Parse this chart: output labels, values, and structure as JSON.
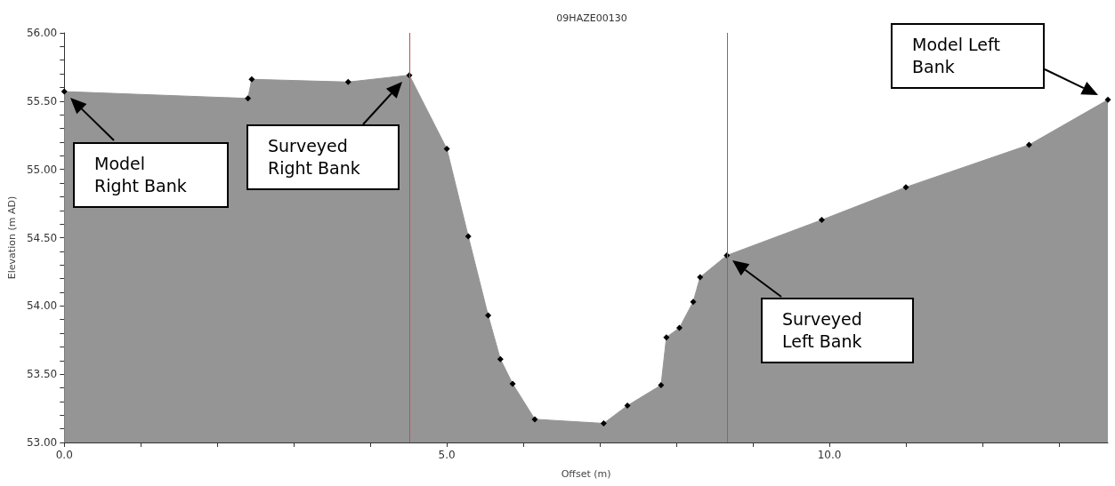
{
  "chart_data": {
    "type": "area",
    "title": "09HAZE00130",
    "xlabel": "Offset (m)",
    "ylabel": "Elevation (m AD)",
    "x": [
      0,
      2.4,
      2.45,
      3.71,
      4.51,
      5.0,
      5.28,
      5.54,
      5.7,
      5.86,
      6.15,
      7.05,
      7.36,
      7.8,
      7.87,
      8.04,
      8.22,
      8.31,
      8.66,
      9.9,
      11.0,
      12.61,
      13.64
    ],
    "series": [
      {
        "color": "#959595",
        "values": [
          55.57,
          55.52,
          55.66,
          55.64,
          55.69,
          55.15,
          54.51,
          53.93,
          53.61,
          53.43,
          53.17,
          53.14,
          53.27,
          53.42,
          53.77,
          53.84,
          54.03,
          54.21,
          54.37,
          54.63,
          54.87,
          55.18,
          55.51
        ]
      }
    ],
    "marker": "diamond",
    "xlim": [
      0,
      13.64
    ],
    "xticks": [
      {
        "value": 0,
        "label": "0.0"
      },
      {
        "value": 1,
        "label": null
      },
      {
        "value": 2,
        "label": null
      },
      {
        "value": 3,
        "label": null
      },
      {
        "value": 4,
        "label": null
      },
      {
        "value": 5,
        "label": "5.0"
      },
      {
        "value": 6,
        "label": null
      },
      {
        "value": 7,
        "label": null
      },
      {
        "value": 8,
        "label": null
      },
      {
        "value": 9,
        "label": null
      },
      {
        "value": 10,
        "label": "10.0"
      },
      {
        "value": 11,
        "label": null
      },
      {
        "value": 12,
        "label": null
      },
      {
        "value": 13,
        "label": null
      }
    ],
    "ylim": [
      53,
      56
    ],
    "yticks": [
      {
        "value": 53,
        "label": "53.00"
      },
      {
        "value": 53.1,
        "label": null
      },
      {
        "value": 53.2,
        "label": null
      },
      {
        "value": 53.3,
        "label": null
      },
      {
        "value": 53.4,
        "label": null
      },
      {
        "value": 53.5,
        "label": "53.50"
      },
      {
        "value": 53.6,
        "label": null
      },
      {
        "value": 53.7,
        "label": null
      },
      {
        "value": 53.8,
        "label": null
      },
      {
        "value": 53.9,
        "label": null
      },
      {
        "value": 54,
        "label": "54.00"
      },
      {
        "value": 54.1,
        "label": null
      },
      {
        "value": 54.2,
        "label": null
      },
      {
        "value": 54.3,
        "label": null
      },
      {
        "value": 54.4,
        "label": null
      },
      {
        "value": 54.5,
        "label": "54.50"
      },
      {
        "value": 54.6,
        "label": null
      },
      {
        "value": 54.7,
        "label": null
      },
      {
        "value": 54.8,
        "label": null
      },
      {
        "value": 54.9,
        "label": null
      },
      {
        "value": 55,
        "label": "55.00"
      },
      {
        "value": 55.1,
        "label": null
      },
      {
        "value": 55.2,
        "label": null
      },
      {
        "value": 55.3,
        "label": null
      },
      {
        "value": 55.4,
        "label": null
      },
      {
        "value": 55.5,
        "label": "55.50"
      },
      {
        "value": 55.6,
        "label": null
      },
      {
        "value": 55.7,
        "label": null
      },
      {
        "value": 55.8,
        "label": null
      },
      {
        "value": 55.9,
        "label": null
      },
      {
        "value": 56,
        "label": "56.00"
      }
    ],
    "ref_lines": [
      {
        "axis": "x",
        "value": 4.51,
        "color": "#c0504d"
      },
      {
        "axis": "x",
        "value": 8.66,
        "color": "#c0504d"
      }
    ],
    "annotations": [
      "Model Right Bank",
      "Surveyed Right Bank",
      "Surveyed Left Bank",
      "Model Left Bank"
    ],
    "grid": false,
    "legend": false
  }
}
